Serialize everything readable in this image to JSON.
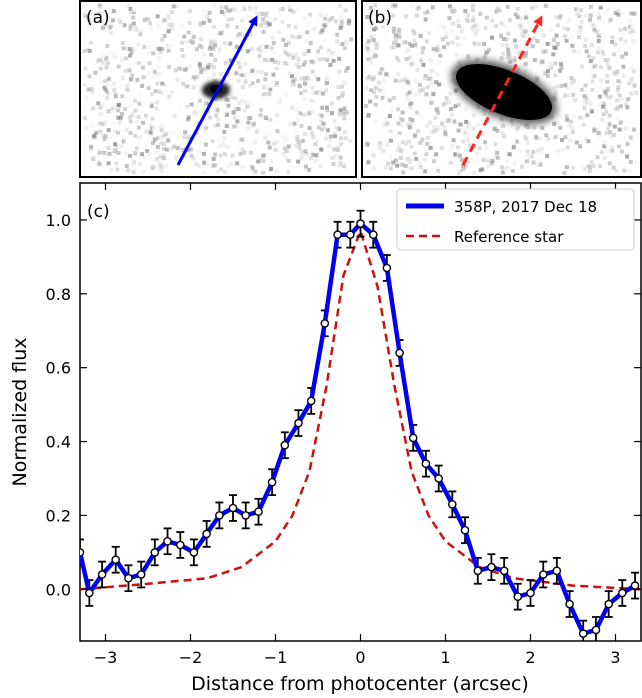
{
  "panels": {
    "a": {
      "label": "(a)"
    },
    "b": {
      "label": "(b)"
    },
    "c": {
      "label": "(c)"
    }
  },
  "colors": {
    "comet": "#0000ee",
    "star": "#cc1111",
    "errorbar": "#000000",
    "image_blob": "#050505"
  },
  "chart_data": {
    "type": "line",
    "xlabel": "Distance from photocenter (arcsec)",
    "ylabel": "Normalized flux",
    "xlim": [
      -3.3,
      3.3
    ],
    "ylim": [
      -0.14,
      1.1
    ],
    "xticks": [
      -3,
      -2,
      -1,
      0,
      1,
      2,
      3
    ],
    "xtick_labels": [
      "−3",
      "−2",
      "−1",
      "0",
      "1",
      "2",
      "3"
    ],
    "yticks": [
      0.0,
      0.2,
      0.4,
      0.6,
      0.8,
      1.0
    ],
    "ytick_labels": [
      "0.0",
      "0.2",
      "0.4",
      "0.6",
      "0.8",
      "1.0"
    ],
    "grid": false,
    "legend_position": "top-right",
    "series": [
      {
        "name": "358P, 2017 Dec 18",
        "style": "solid",
        "error": 0.035,
        "x": [
          -3.3,
          -3.19,
          -3.04,
          -2.88,
          -2.73,
          -2.58,
          -2.42,
          -2.27,
          -2.12,
          -1.96,
          -1.81,
          -1.66,
          -1.5,
          -1.35,
          -1.2,
          -1.04,
          -0.89,
          -0.73,
          -0.58,
          -0.42,
          -0.27,
          -0.12,
          0.0,
          0.15,
          0.31,
          0.46,
          0.62,
          0.77,
          0.92,
          1.08,
          1.23,
          1.38,
          1.54,
          1.69,
          1.85,
          2.0,
          2.15,
          2.31,
          2.46,
          2.62,
          2.77,
          2.92,
          3.08,
          3.23
        ],
        "y": [
          0.1,
          -0.01,
          0.04,
          0.08,
          0.03,
          0.04,
          0.1,
          0.13,
          0.12,
          0.1,
          0.15,
          0.2,
          0.22,
          0.2,
          0.21,
          0.29,
          0.39,
          0.45,
          0.51,
          0.72,
          0.96,
          0.96,
          0.99,
          0.96,
          0.87,
          0.64,
          0.41,
          0.34,
          0.3,
          0.23,
          0.16,
          0.05,
          0.06,
          0.05,
          -0.02,
          -0.01,
          0.04,
          0.05,
          -0.04,
          -0.12,
          -0.11,
          -0.04,
          -0.01,
          0.01
        ]
      },
      {
        "name": "Reference star",
        "style": "dashed",
        "x": [
          -3.3,
          -2.5,
          -1.8,
          -1.4,
          -1.0,
          -0.8,
          -0.6,
          -0.4,
          -0.2,
          0.0,
          0.2,
          0.4,
          0.6,
          0.8,
          1.0,
          1.4,
          1.8,
          2.5,
          3.3
        ],
        "y": [
          0.0,
          0.015,
          0.03,
          0.06,
          0.13,
          0.2,
          0.32,
          0.55,
          0.85,
          0.97,
          0.82,
          0.55,
          0.32,
          0.2,
          0.13,
          0.06,
          0.03,
          0.01,
          0.0
        ]
      }
    ]
  }
}
